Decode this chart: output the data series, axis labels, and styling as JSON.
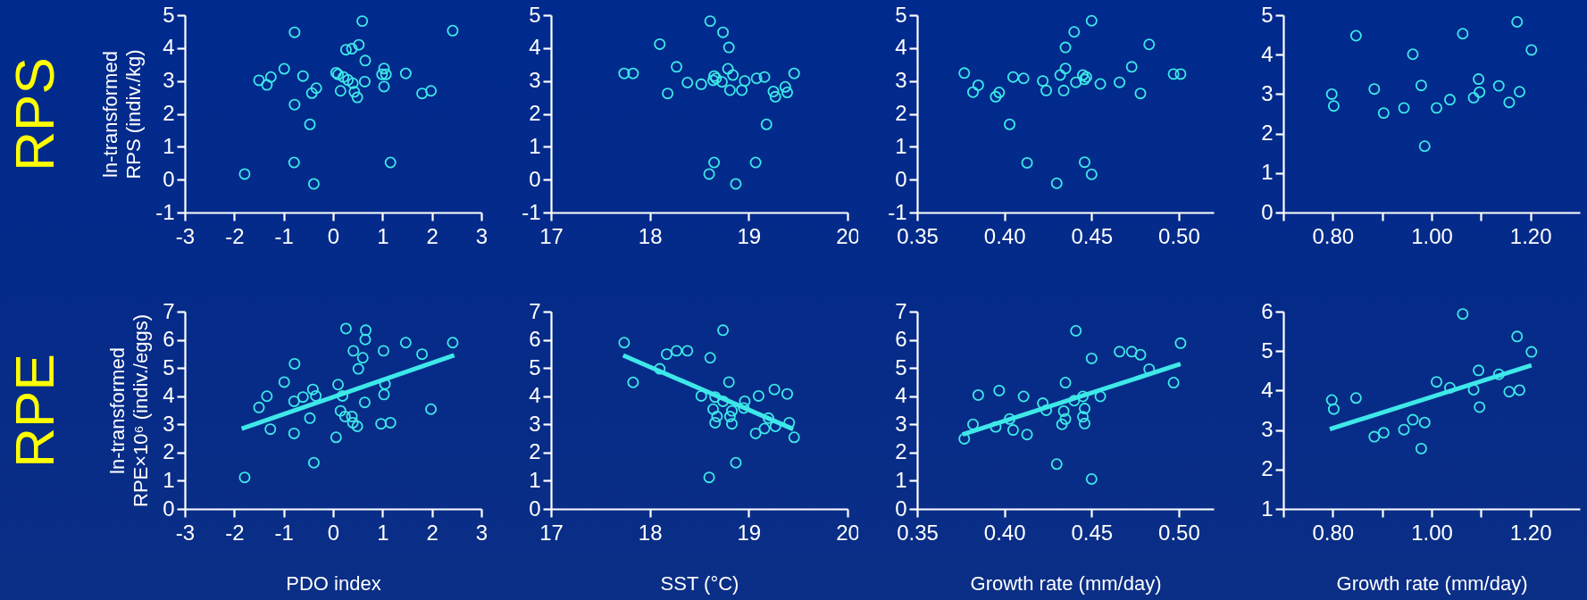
{
  "chart_data": [
    {
      "type": "scatter",
      "annotations": [
        "RPS"
      ],
      "ylabel": "ln-transformed\nRPS (indiv./kg)",
      "xlim": [
        -3,
        3
      ],
      "xticks": [
        -3,
        -2,
        -1,
        0,
        1,
        2,
        3
      ],
      "ylim": [
        -1,
        5
      ],
      "yticks": [
        -1,
        0,
        1,
        2,
        3,
        4,
        5
      ],
      "grid": false,
      "series": [
        {
          "color": "#3ee8e8",
          "marker": "circle",
          "x": [
            -1.79,
            -1.5,
            -1.34,
            -1.26,
            -0.99,
            -0.78,
            -0.78,
            -0.79,
            -0.61,
            -0.43,
            -0.34,
            -0.47,
            -0.39,
            0.06,
            0.1,
            0.15,
            0.21,
            0.3,
            0.26,
            0.38,
            0.52,
            0.59,
            0.4,
            0.43,
            0.49,
            0.65,
            0.64,
            1.03,
            0.99,
            1.07,
            1.03,
            1.16,
            1.47,
            1.8,
            1.98,
            2.42
          ],
          "values": [
            0.17,
            3.02,
            2.88,
            3.12,
            3.37,
            4.48,
            2.28,
            0.52,
            3.15,
            2.63,
            2.78,
            1.68,
            -0.13,
            3.25,
            3.2,
            2.7,
            3.12,
            3.03,
            3.95,
            3.98,
            4.1,
            4.82,
            2.93,
            2.67,
            2.5,
            3.62,
            2.98,
            3.38,
            3.2,
            3.2,
            2.83,
            0.52,
            3.23,
            2.62,
            2.7,
            4.53
          ]
        }
      ]
    },
    {
      "type": "scatter",
      "xlim": [
        17,
        20
      ],
      "xticks": [
        17,
        18,
        19,
        20
      ],
      "ylim": [
        -1,
        5
      ],
      "yticks": [
        -1,
        0,
        1,
        2,
        3,
        4,
        5
      ],
      "grid": false,
      "series": [
        {
          "color": "#3ee8e8",
          "marker": "circle",
          "x": [
            17.74,
            17.83,
            18.1,
            18.18,
            18.27,
            18.38,
            18.52,
            18.61,
            18.74,
            18.8,
            18.65,
            18.67,
            18.64,
            18.73,
            18.79,
            18.84,
            18.81,
            18.96,
            18.93,
            19.08,
            19.16,
            19.25,
            19.27,
            19.37,
            19.39,
            19.46,
            19.18,
            18.65,
            18.6,
            18.87,
            19.07
          ],
          "values": [
            3.23,
            3.23,
            4.12,
            2.62,
            3.43,
            2.95,
            2.9,
            4.82,
            4.48,
            4.02,
            3.15,
            3.08,
            3.02,
            2.97,
            3.37,
            3.18,
            2.72,
            3.0,
            2.72,
            3.08,
            3.12,
            2.68,
            2.52,
            2.82,
            2.65,
            3.23,
            1.68,
            0.52,
            0.17,
            -0.13,
            0.52
          ]
        }
      ]
    },
    {
      "type": "scatter",
      "xlim": [
        0.35,
        0.52
      ],
      "xticks": [
        0.35,
        {
          "value": 0.4,
          "label": "0.40"
        },
        0.45,
        {
          "value": 0.5,
          "label": "0.50"
        }
      ],
      "ylim": [
        -1,
        5
      ],
      "yticks": [
        -1,
        0,
        1,
        2,
        3,
        4,
        5
      ],
      "grid": false,
      "series": [
        {
          "color": "#3ee8e8",
          "marker": "circle",
          "x": [
            0.377,
            0.382,
            0.385,
            0.395,
            0.397,
            0.403,
            0.405,
            0.411,
            0.413,
            0.422,
            0.424,
            0.43,
            0.432,
            0.435,
            0.435,
            0.44,
            0.434,
            0.441,
            0.445,
            0.446,
            0.447,
            0.45,
            0.446,
            0.45,
            0.455,
            0.466,
            0.473,
            0.478,
            0.483,
            0.497,
            0.501
          ],
          "values": [
            3.24,
            2.66,
            2.87,
            2.52,
            2.65,
            1.68,
            3.12,
            3.08,
            0.51,
            3.0,
            2.71,
            -0.11,
            3.18,
            3.38,
            4.02,
            4.49,
            2.71,
            2.96,
            3.18,
            3.05,
            3.12,
            4.83,
            0.53,
            0.16,
            2.91,
            2.96,
            3.43,
            2.62,
            4.11,
            3.21,
            3.21
          ]
        }
      ]
    },
    {
      "type": "scatter",
      "xlim": [
        0.7,
        1.3
      ],
      "xticks": [
        {
          "value": 0.7,
          "label": null
        },
        {
          "value": 0.8,
          "label": "0.80"
        },
        {
          "value": 0.9,
          "label": null
        },
        {
          "value": 1.0,
          "label": "1.00"
        },
        {
          "value": 1.1,
          "label": null
        },
        {
          "value": 1.2,
          "label": "1.20"
        }
      ],
      "ylim": [
        0,
        5
      ],
      "yticks": [
        0,
        1,
        2,
        3,
        4,
        5
      ],
      "grid": false,
      "series": [
        {
          "color": "#3ee8e8",
          "marker": "circle",
          "x": [
            0.798,
            0.802,
            0.847,
            0.884,
            0.903,
            0.944,
            0.962,
            0.979,
            0.986,
            1.01,
            1.037,
            1.063,
            1.085,
            1.095,
            1.097,
            1.136,
            1.157,
            1.173,
            1.178,
            1.202
          ],
          "values": [
            3.0,
            2.7,
            4.48,
            3.13,
            2.52,
            2.65,
            4.01,
            3.22,
            1.68,
            2.65,
            2.86,
            4.53,
            2.91,
            3.38,
            3.05,
            3.21,
            2.79,
            4.83,
            3.06,
            4.12
          ]
        }
      ]
    },
    {
      "type": "scatter",
      "annotations": [
        "RPE"
      ],
      "ylabel": "ln-transformed\nRPE×10⁶ (indiv./eggs)",
      "xlabel": "PDO index",
      "xlim": [
        -3,
        3
      ],
      "xticks": [
        -3,
        -2,
        -1,
        0,
        1,
        2,
        3
      ],
      "ylim": [
        0,
        7
      ],
      "yticks": [
        0,
        1,
        2,
        3,
        4,
        5,
        6,
        7
      ],
      "grid": false,
      "series": [
        {
          "color": "#3ee8e8",
          "marker": "circle",
          "x": [
            -1.79,
            -1.5,
            -1.34,
            -1.27,
            -0.99,
            -0.78,
            -0.79,
            -0.79,
            -0.61,
            -0.41,
            -0.47,
            -0.35,
            -0.39,
            0.06,
            0.1,
            0.15,
            0.19,
            0.24,
            0.26,
            0.38,
            0.41,
            0.4,
            0.49,
            0.51,
            0.6,
            0.66,
            0.65,
            0.64,
            1.02,
            1.05,
            1.03,
            0.97,
            1.16,
            1.47,
            1.8,
            1.98,
            2.42
          ],
          "values": [
            1.12,
            3.6,
            4.0,
            2.83,
            4.5,
            5.15,
            3.82,
            2.68,
            3.97,
            4.24,
            3.22,
            4.01,
            1.64,
            2.54,
            4.41,
            3.48,
            4.01,
            3.28,
            6.4,
            3.28,
            5.61,
            3.06,
            2.93,
            4.97,
            5.36,
            6.34,
            6.01,
            3.78,
            5.61,
            4.43,
            4.06,
            3.02,
            3.06,
            5.9,
            5.49,
            3.54,
            5.9
          ]
        },
        {
          "type": "line",
          "color": "#3ee8e8",
          "x": [
            -1.85,
            2.45
          ],
          "values": [
            2.85,
            5.45
          ]
        }
      ]
    },
    {
      "type": "scatter",
      "xlabel": "SST (°C)",
      "xlim": [
        17,
        20
      ],
      "xticks": [
        17,
        18,
        19,
        20
      ],
      "ylim": [
        0,
        7
      ],
      "yticks": [
        0,
        1,
        2,
        3,
        4,
        5,
        6,
        7
      ],
      "grid": false,
      "series": [
        {
          "color": "#3ee8e8",
          "marker": "circle",
          "x": [
            17.74,
            17.83,
            18.1,
            18.17,
            18.27,
            18.38,
            18.52,
            18.61,
            18.6,
            18.74,
            18.66,
            18.64,
            18.66,
            18.68,
            18.74,
            18.8,
            18.81,
            18.83,
            18.83,
            18.87,
            18.95,
            18.96,
            19.1,
            19.07,
            19.16,
            19.2,
            19.26,
            19.27,
            19.39,
            19.41,
            19.46
          ],
          "values": [
            5.9,
            4.49,
            4.97,
            5.49,
            5.61,
            5.61,
            4.01,
            5.36,
            1.12,
            6.34,
            3.97,
            3.54,
            3.06,
            3.28,
            3.82,
            4.5,
            3.28,
            3.02,
            3.48,
            1.64,
            3.58,
            3.82,
            4.01,
            2.68,
            2.85,
            3.22,
            4.24,
            2.93,
            4.08,
            3.06,
            2.54
          ]
        },
        {
          "type": "line",
          "color": "#3ee8e8",
          "x": [
            17.73,
            19.45
          ],
          "values": [
            5.45,
            2.83
          ]
        }
      ]
    },
    {
      "type": "scatter",
      "xlabel": "Growth rate (mm/day)",
      "xlim": [
        0.35,
        0.52
      ],
      "xticks": [
        0.35,
        {
          "value": 0.4,
          "label": "0.40"
        },
        0.45,
        {
          "value": 0.5,
          "label": "0.50"
        }
      ],
      "ylim": [
        0,
        7
      ],
      "yticks": [
        0,
        1,
        2,
        3,
        4,
        5,
        6,
        7
      ],
      "grid": false,
      "series": [
        {
          "color": "#3ee8e8",
          "marker": "circle",
          "x": [
            0.377,
            0.382,
            0.385,
            0.395,
            0.397,
            0.403,
            0.405,
            0.411,
            0.413,
            0.422,
            0.424,
            0.43,
            0.433,
            0.434,
            0.435,
            0.435,
            0.441,
            0.44,
            0.445,
            0.446,
            0.445,
            0.446,
            0.45,
            0.45,
            0.455,
            0.466,
            0.473,
            0.478,
            0.483,
            0.497,
            0.501
          ],
          "values": [
            2.49,
            3.0,
            4.04,
            2.91,
            4.2,
            3.19,
            2.8,
            3.99,
            2.64,
            3.75,
            3.5,
            1.59,
            3.0,
            3.47,
            3.19,
            4.48,
            6.32,
            3.84,
            3.99,
            3.56,
            3.27,
            3.03,
            5.34,
            1.06,
            3.99,
            5.58,
            5.58,
            5.47,
            4.96,
            4.48,
            5.88
          ]
        },
        {
          "type": "line",
          "color": "#3ee8e8",
          "x": [
            0.376,
            0.501
          ],
          "values": [
            2.64,
            5.14
          ]
        }
      ]
    },
    {
      "type": "scatter",
      "xlabel": "Growth rate (mm/day)",
      "xlim": [
        0.7,
        1.3
      ],
      "xticks": [
        {
          "value": 0.7,
          "label": null
        },
        {
          "value": 0.8,
          "label": "0.80"
        },
        {
          "value": 0.9,
          "label": null
        },
        {
          "value": 1.0,
          "label": "1.00"
        },
        {
          "value": 1.1,
          "label": null
        },
        {
          "value": 1.2,
          "label": "1.20"
        }
      ],
      "ylim": [
        1,
        6
      ],
      "yticks": [
        1,
        2,
        3,
        4,
        5,
        6
      ],
      "grid": false,
      "series": [
        {
          "color": "#3ee8e8",
          "marker": "circle",
          "x": [
            0.798,
            0.802,
            0.847,
            0.884,
            0.903,
            0.944,
            0.962,
            0.986,
            0.979,
            1.01,
            1.037,
            1.063,
            1.085,
            1.095,
            1.097,
            1.136,
            1.157,
            1.173,
            1.178,
            1.202
          ],
          "values": [
            3.76,
            3.53,
            3.81,
            2.83,
            2.93,
            3.01,
            3.26,
            3.19,
            2.53,
            4.22,
            4.07,
            5.94,
            4.02,
            4.51,
            3.58,
            4.41,
            3.97,
            5.37,
            4.01,
            4.98
          ]
        },
        {
          "type": "line",
          "color": "#3ee8e8",
          "x": [
            0.794,
            1.202
          ],
          "values": [
            3.02,
            4.64
          ]
        }
      ]
    }
  ]
}
